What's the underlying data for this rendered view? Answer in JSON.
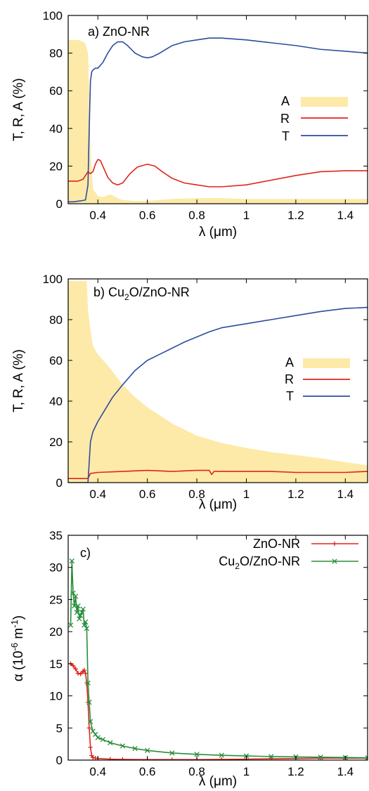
{
  "chart_data": [
    {
      "type": "line",
      "panel_label": "a) ZnO-NR",
      "ylabel": "T, R, A (%)",
      "xlabel": "λ (μm)",
      "xlim": [
        0.28,
        1.49
      ],
      "ylim": [
        0,
        100
      ],
      "xticks": [
        "0.4",
        "0.6",
        "0.8",
        "1",
        "1.2",
        "1.4"
      ],
      "yticks": [
        "0",
        "20",
        "40",
        "60",
        "80",
        "100"
      ],
      "legend_position": "right",
      "series": [
        {
          "name": "A",
          "style": "area",
          "color": "#fdeaa8",
          "x": [
            0.28,
            0.3,
            0.32,
            0.34,
            0.35,
            0.36,
            0.365,
            0.37,
            0.38,
            0.4,
            0.42,
            0.45,
            0.48,
            0.5,
            0.55,
            0.6,
            0.65,
            0.7,
            0.8,
            0.9,
            1.0,
            1.1,
            1.2,
            1.3,
            1.4,
            1.49
          ],
          "y": [
            87,
            87,
            87,
            86,
            85,
            80,
            60,
            30,
            8,
            4,
            3.5,
            5,
            3,
            2,
            1.5,
            1.5,
            2,
            2.5,
            3,
            3,
            2.5,
            2.5,
            2.5,
            2.5,
            2.5,
            2.5
          ]
        },
        {
          "name": "R",
          "style": "line",
          "color": "#e0251c",
          "x": [
            0.28,
            0.3,
            0.32,
            0.34,
            0.36,
            0.37,
            0.38,
            0.39,
            0.4,
            0.41,
            0.42,
            0.44,
            0.46,
            0.48,
            0.5,
            0.53,
            0.56,
            0.6,
            0.63,
            0.66,
            0.7,
            0.75,
            0.8,
            0.85,
            0.9,
            1.0,
            1.1,
            1.2,
            1.3,
            1.4,
            1.49
          ],
          "y": [
            12,
            12,
            12,
            13,
            17,
            16,
            17,
            21,
            23.5,
            23,
            20,
            14,
            11,
            10,
            11,
            16,
            19.5,
            21,
            20,
            17,
            13.5,
            11,
            10,
            9,
            9,
            10,
            12.5,
            15,
            17,
            17.5,
            17.5
          ]
        },
        {
          "name": "T",
          "style": "line",
          "color": "#2c4d9e",
          "x": [
            0.28,
            0.3,
            0.33,
            0.35,
            0.36,
            0.365,
            0.37,
            0.375,
            0.38,
            0.39,
            0.4,
            0.42,
            0.44,
            0.46,
            0.48,
            0.5,
            0.52,
            0.55,
            0.58,
            0.6,
            0.62,
            0.65,
            0.7,
            0.75,
            0.8,
            0.85,
            0.9,
            1.0,
            1.1,
            1.2,
            1.3,
            1.4,
            1.49
          ],
          "y": [
            1,
            1,
            1.5,
            2,
            10,
            40,
            65,
            70,
            71,
            72,
            72,
            75,
            80,
            84,
            86,
            86,
            84,
            80,
            78,
            77.5,
            78,
            80,
            84,
            86,
            87,
            88,
            88,
            87,
            85.5,
            84,
            82,
            81,
            80
          ]
        }
      ]
    },
    {
      "type": "line",
      "panel_label": "b) Cu2O/ZnO-NR",
      "panel_label_pre": "b) Cu",
      "panel_label_sub": "2",
      "panel_label_post": "O/ZnO-NR",
      "ylabel": "T, R, A (%)",
      "xlabel": "λ (μm)",
      "xlim": [
        0.28,
        1.49
      ],
      "ylim": [
        0,
        100
      ],
      "xticks": [
        "0.4",
        "0.6",
        "0.8",
        "1",
        "1.2",
        "1.4"
      ],
      "yticks": [
        "0",
        "20",
        "40",
        "60",
        "80",
        "100"
      ],
      "legend_position": "right",
      "series": [
        {
          "name": "A",
          "style": "area",
          "color": "#fdeaa8",
          "x": [
            0.28,
            0.3,
            0.32,
            0.34,
            0.355,
            0.36,
            0.37,
            0.38,
            0.4,
            0.45,
            0.5,
            0.55,
            0.6,
            0.65,
            0.7,
            0.8,
            0.9,
            1.0,
            1.1,
            1.2,
            1.3,
            1.4,
            1.49
          ],
          "y": [
            99,
            99,
            99,
            99,
            99,
            85,
            75,
            67,
            63,
            56,
            48,
            42,
            37,
            33,
            29,
            23,
            19.5,
            17,
            15,
            13.5,
            12,
            10,
            8.5
          ]
        },
        {
          "name": "R",
          "style": "line",
          "color": "#e0251c",
          "x": [
            0.28,
            0.3,
            0.34,
            0.36,
            0.37,
            0.4,
            0.5,
            0.6,
            0.7,
            0.8,
            0.85,
            0.86,
            0.87,
            0.9,
            1.0,
            1.1,
            1.2,
            1.3,
            1.4,
            1.49
          ],
          "y": [
            2,
            2,
            2,
            2,
            4.5,
            5,
            5.5,
            6,
            5.5,
            6,
            6,
            4,
            5.5,
            5.5,
            5.5,
            5.5,
            5,
            5,
            5,
            5.5
          ]
        },
        {
          "name": "T",
          "style": "line",
          "color": "#2c4d9e",
          "x": [
            0.28,
            0.3,
            0.34,
            0.36,
            0.365,
            0.37,
            0.38,
            0.4,
            0.43,
            0.46,
            0.5,
            0.55,
            0.6,
            0.65,
            0.7,
            0.75,
            0.8,
            0.85,
            0.9,
            1.0,
            1.1,
            1.2,
            1.3,
            1.4,
            1.49
          ],
          "y": [
            0,
            0,
            0,
            0,
            10,
            20,
            25,
            30,
            36,
            42,
            48,
            55,
            60,
            63,
            66,
            69,
            71.5,
            74,
            76,
            78,
            80,
            82,
            84,
            85.5,
            86
          ]
        }
      ]
    },
    {
      "type": "line",
      "panel_label": "c)",
      "ylabel_pre": "α (10",
      "ylabel_sup1": "-6",
      "ylabel_mid": " m",
      "ylabel_sup2": "-1",
      "ylabel_post": ")",
      "xlabel": "λ (μm)",
      "xlim": [
        0.28,
        1.49
      ],
      "ylim": [
        0,
        35
      ],
      "xticks": [
        "0.4",
        "0.6",
        "0.8",
        "1",
        "1.2",
        "1.4"
      ],
      "yticks": [
        "0",
        "5",
        "10",
        "15",
        "20",
        "25",
        "30",
        "35"
      ],
      "legend_position": "top-right",
      "series": [
        {
          "name": "ZnO-NR",
          "style": "line-markers",
          "marker": "plus",
          "color": "#e0251c",
          "x": [
            0.29,
            0.3,
            0.31,
            0.32,
            0.33,
            0.34,
            0.345,
            0.35,
            0.355,
            0.36,
            0.365,
            0.37,
            0.375,
            0.38,
            0.39,
            0.4,
            0.45,
            0.5,
            0.6,
            0.7,
            0.8,
            0.9,
            1.0,
            1.1,
            1.2,
            1.3,
            1.4,
            1.49
          ],
          "y": [
            15,
            14.7,
            14.2,
            13.5,
            13.4,
            13.8,
            14,
            13.5,
            12,
            9,
            5,
            2,
            0.7,
            0.4,
            0.3,
            0.25,
            0.15,
            0.1,
            0.08,
            0.08,
            0.08,
            0.1,
            0.15,
            0.2,
            0.25,
            0.3,
            0.3,
            0.3
          ]
        },
        {
          "name": "Cu2O/ZnO-NR",
          "legend_pre": "Cu",
          "legend_sub": "2",
          "legend_post": "O/ZnO-NR",
          "style": "line-markers",
          "marker": "cross",
          "color": "#2a8e3b",
          "x": [
            0.29,
            0.295,
            0.3,
            0.305,
            0.31,
            0.315,
            0.32,
            0.325,
            0.33,
            0.335,
            0.34,
            0.345,
            0.35,
            0.355,
            0.36,
            0.365,
            0.37,
            0.38,
            0.39,
            0.4,
            0.42,
            0.45,
            0.5,
            0.55,
            0.6,
            0.7,
            0.8,
            0.9,
            1.0,
            1.1,
            1.2,
            1.3,
            1.4,
            1.49
          ],
          "y": [
            21,
            31,
            26,
            24,
            25.5,
            23,
            24,
            22,
            22.5,
            23,
            23.5,
            21,
            21.5,
            20.5,
            12,
            9,
            6,
            4.5,
            4,
            3.5,
            3.2,
            2.7,
            2.2,
            1.8,
            1.5,
            1.1,
            0.9,
            0.75,
            0.65,
            0.55,
            0.5,
            0.45,
            0.4,
            0.35
          ]
        }
      ]
    }
  ]
}
